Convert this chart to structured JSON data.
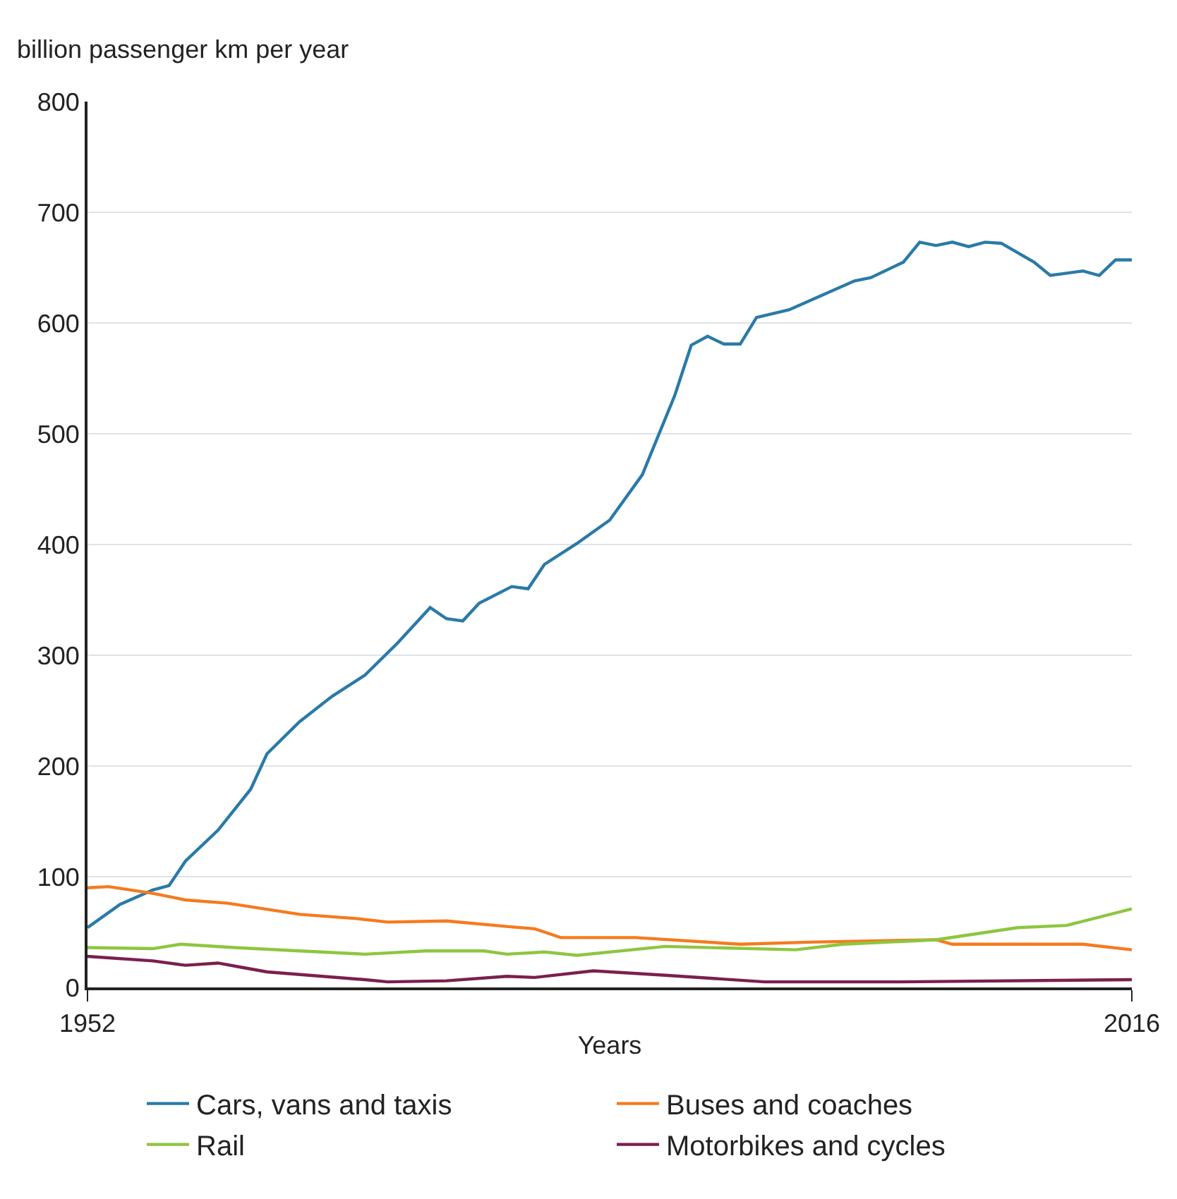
{
  "chart_data": {
    "type": "line",
    "ylabel": "billion passenger km per year",
    "xlabel": "Years",
    "xlim": [
      1952,
      2016
    ],
    "xticks": [
      1952,
      2016
    ],
    "ylim": [
      0,
      800
    ],
    "yticks": [
      0,
      100,
      200,
      300,
      400,
      500,
      600,
      700,
      800
    ],
    "grid": "y",
    "legend": "bottom",
    "line_style": "solid",
    "marker": "none",
    "series": [
      {
        "name": "Cars, vans and taxis",
        "color": "#2a7aa8",
        "x": [
          1952,
          1954,
          1956,
          1957,
          1958,
          1960,
          1962,
          1963,
          1965,
          1967,
          1969,
          1971,
          1973,
          1974,
          1975,
          1976,
          1978,
          1979,
          1980,
          1982,
          1984,
          1986,
          1988,
          1989,
          1990,
          1991,
          1992,
          1993,
          1995,
          1997,
          1999,
          2000,
          2002,
          2003,
          2004,
          2005,
          2006,
          2007,
          2008,
          2010,
          2011,
          2012,
          2013,
          2014,
          2015,
          2016
        ],
        "values": [
          54,
          75,
          88,
          92,
          114,
          142,
          179,
          211,
          240,
          263,
          282,
          311,
          343,
          333,
          331,
          347,
          362,
          360,
          382,
          401,
          422,
          463,
          535,
          580,
          588,
          581,
          581,
          605,
          612,
          625,
          638,
          641,
          655,
          673,
          670,
          673,
          669,
          673,
          672,
          655,
          643,
          645,
          647,
          643,
          657,
          657
        ]
      },
      {
        "name": "Buses and coaches",
        "color": "#f47b20",
        "x": [
          1952,
          1953.3,
          1956,
          1958,
          1960.6,
          1965,
          1968.6,
          1970.4,
          1974,
          1977.7,
          1979.4,
          1981,
          1985.6,
          1992,
          1996.6,
          2004,
          2005,
          2009,
          2013,
          2016
        ],
        "values": [
          90,
          91,
          85,
          79,
          76,
          66,
          62,
          59,
          60,
          55,
          53,
          45,
          45,
          39,
          41,
          43,
          39,
          39,
          39,
          34
        ]
      },
      {
        "name": "Rail",
        "color": "#8dc63f",
        "x": [
          1952,
          1956,
          1957.7,
          1961,
          1965,
          1969,
          1972.7,
          1976.3,
          1977.7,
          1980,
          1982,
          1987.4,
          1995.4,
          1998.3,
          2004,
          2009,
          2012,
          2016
        ],
        "values": [
          36,
          35,
          39,
          36,
          33,
          30,
          33,
          33,
          30,
          32,
          29,
          37,
          34,
          39,
          43,
          54,
          56,
          71
        ]
      },
      {
        "name": "Motorbikes and cycles",
        "color": "#7b1f4e",
        "x": [
          1952,
          1956,
          1958,
          1960,
          1961.5,
          1963,
          1969,
          1970.4,
          1974,
          1977.7,
          1979.4,
          1983,
          1987.4,
          1993.5,
          2001.8,
          2016
        ],
        "values": [
          28,
          24,
          20,
          22,
          18,
          14,
          7,
          5,
          6,
          10,
          9,
          15,
          11,
          5,
          5,
          7
        ]
      }
    ]
  }
}
